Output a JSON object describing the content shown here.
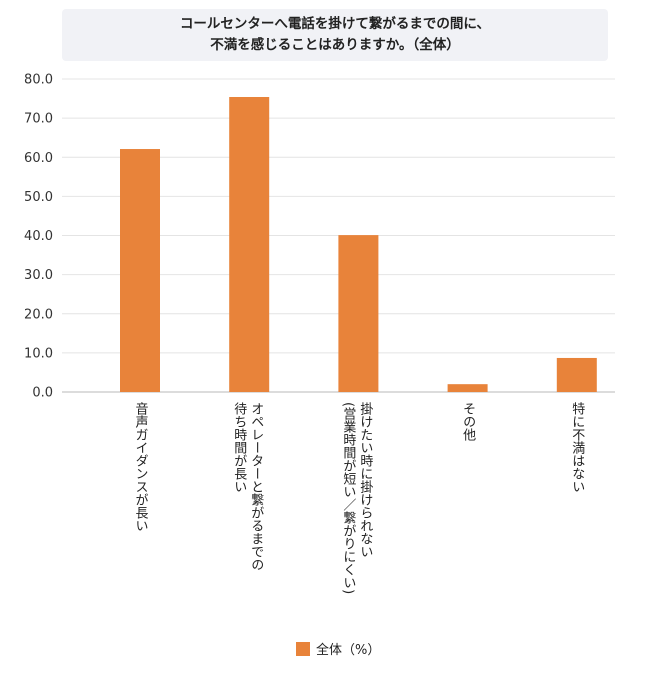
{
  "chart_data": {
    "type": "bar",
    "title": [
      "コールセンターへ電話を掛けて繋がるまでの間に、",
      "不満を感じることはありますか。（全体）"
    ],
    "categories": [
      [
        "音声ガイダンスが長い"
      ],
      [
        "オペレーターと繋がるまでの",
        "待ち時間が長い"
      ],
      [
        "掛けたい時に掛けられない",
        "(営業時間が短い／繋がりにくい)"
      ],
      [
        "その他"
      ],
      [
        "特に不満はない"
      ]
    ],
    "series": [
      {
        "name": "全体（%）",
        "values": [
          62.1,
          75.4,
          40.1,
          2.0,
          8.7
        ],
        "color": "#e8833a"
      }
    ],
    "ylim": [
      0,
      80
    ],
    "yticks": [
      "0.0",
      "10.0",
      "20.0",
      "30.0",
      "40.0",
      "50.0",
      "60.0",
      "70.0",
      "80.0"
    ],
    "grid": true,
    "legend_position": "bottom"
  }
}
